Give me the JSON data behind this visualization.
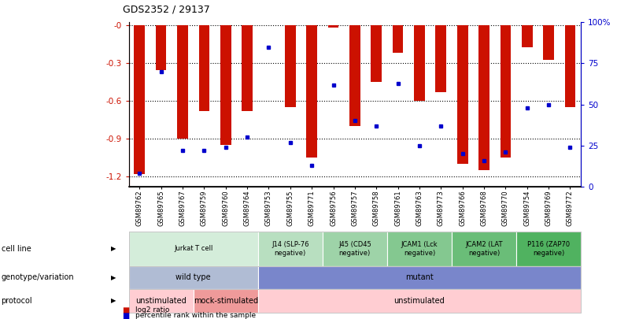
{
  "title": "GDS2352 / 29137",
  "samples": [
    "GSM89762",
    "GSM89765",
    "GSM89767",
    "GSM89759",
    "GSM89760",
    "GSM89764",
    "GSM89753",
    "GSM89755",
    "GSM89771",
    "GSM89756",
    "GSM89757",
    "GSM89758",
    "GSM89761",
    "GSM89763",
    "GSM89773",
    "GSM89766",
    "GSM89768",
    "GSM89770",
    "GSM89754",
    "GSM89769",
    "GSM89772"
  ],
  "log2_ratio": [
    -1.18,
    -0.36,
    -0.9,
    -0.68,
    -0.95,
    -0.68,
    0.0,
    -0.65,
    -1.05,
    -0.02,
    -0.8,
    -0.45,
    -0.22,
    -0.6,
    -0.53,
    -1.1,
    -1.15,
    -1.05,
    -0.18,
    -0.28,
    -0.65
  ],
  "percentile_rank": [
    8,
    70,
    22,
    22,
    24,
    30,
    85,
    27,
    13,
    62,
    40,
    37,
    63,
    25,
    37,
    20,
    16,
    21,
    48,
    50,
    24
  ],
  "bar_color": "#cc1100",
  "dot_color": "#0000cc",
  "cell_line_groups": [
    {
      "label": "Jurkat T cell",
      "start": 0,
      "end": 6,
      "color": "#d4edda"
    },
    {
      "label": "J14 (SLP-76\nnegative)",
      "start": 6,
      "end": 9,
      "color": "#b8dfc0"
    },
    {
      "label": "J45 (CD45\nnegative)",
      "start": 9,
      "end": 12,
      "color": "#9ed3a8"
    },
    {
      "label": "JCAM1 (Lck\nnegative)",
      "start": 12,
      "end": 15,
      "color": "#84c890"
    },
    {
      "label": "JCAM2 (LAT\nnegative)",
      "start": 15,
      "end": 18,
      "color": "#6abd78"
    },
    {
      "label": "P116 (ZAP70\nnegative)",
      "start": 18,
      "end": 21,
      "color": "#50b260"
    }
  ],
  "genotype_groups": [
    {
      "label": "wild type",
      "start": 0,
      "end": 6,
      "color": "#b0bcd4"
    },
    {
      "label": "mutant",
      "start": 6,
      "end": 21,
      "color": "#7986cb"
    }
  ],
  "protocol_groups": [
    {
      "label": "unstimulated",
      "start": 0,
      "end": 3,
      "color": "#ffcdd2"
    },
    {
      "label": "mock-stimulated",
      "start": 3,
      "end": 6,
      "color": "#ef9a9a"
    },
    {
      "label": "unstimulated",
      "start": 6,
      "end": 21,
      "color": "#ffcdd2"
    }
  ]
}
